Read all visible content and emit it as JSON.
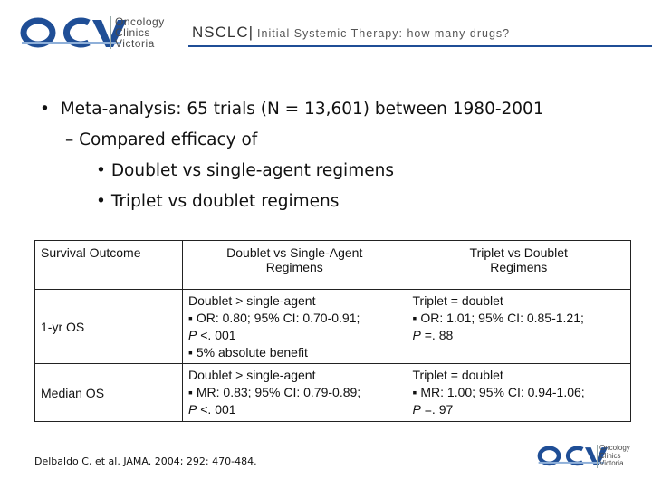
{
  "header": {
    "logo_mark": "OCV",
    "logo_words": [
      "Oncology",
      "Clinics",
      "Victoria"
    ],
    "title": "NSCLC|",
    "subtitle": "Initial Systemic Therapy: how many drugs?",
    "brand_color": "#1f4e96"
  },
  "bullets": [
    {
      "level": 1,
      "marker": "•",
      "text": "Meta-analysis: 65 trials (N = 13,601) between 1980-2001"
    },
    {
      "level": 2,
      "marker": "–",
      "text": "Compared efficacy of"
    },
    {
      "level": 3,
      "marker": "•",
      "text": "Doublet vs single-agent regimens"
    },
    {
      "level": 3,
      "marker": "•",
      "text": "Triplet vs doublet regimens"
    }
  ],
  "table": {
    "headers": [
      "Survival Outcome",
      "Doublet vs Single-Agent Regimens",
      "Triplet vs Doublet Regimens"
    ],
    "header_lines": [
      [
        "Survival Outcome"
      ],
      [
        "Doublet vs Single-Agent",
        "Regimens"
      ],
      [
        "Triplet vs Doublet",
        "Regimens"
      ]
    ],
    "rows": [
      {
        "outcome": "1-yr OS",
        "doublet_vs_single": [
          "Doublet > single-agent",
          "▪ OR: 0.80; 95% CI: 0.70-0.91;",
          "P <. 001",
          "▪ 5% absolute benefit"
        ],
        "triplet_vs_doublet": [
          "Triplet = doublet",
          "▪ OR: 1.01; 95% CI: 0.85-1.21;",
          "P =. 88"
        ]
      },
      {
        "outcome": "Median OS",
        "doublet_vs_single": [
          "Doublet > single-agent",
          "▪ MR: 0.83; 95% CI: 0.79-0.89;",
          "P <. 001"
        ],
        "triplet_vs_doublet": [
          "Triplet = doublet",
          "▪ MR: 1.00; 95% CI: 0.94-1.06;",
          "P =. 97"
        ]
      }
    ]
  },
  "citation": "Delbaldo C, et al. JAMA. 2004; 292: 470-484."
}
